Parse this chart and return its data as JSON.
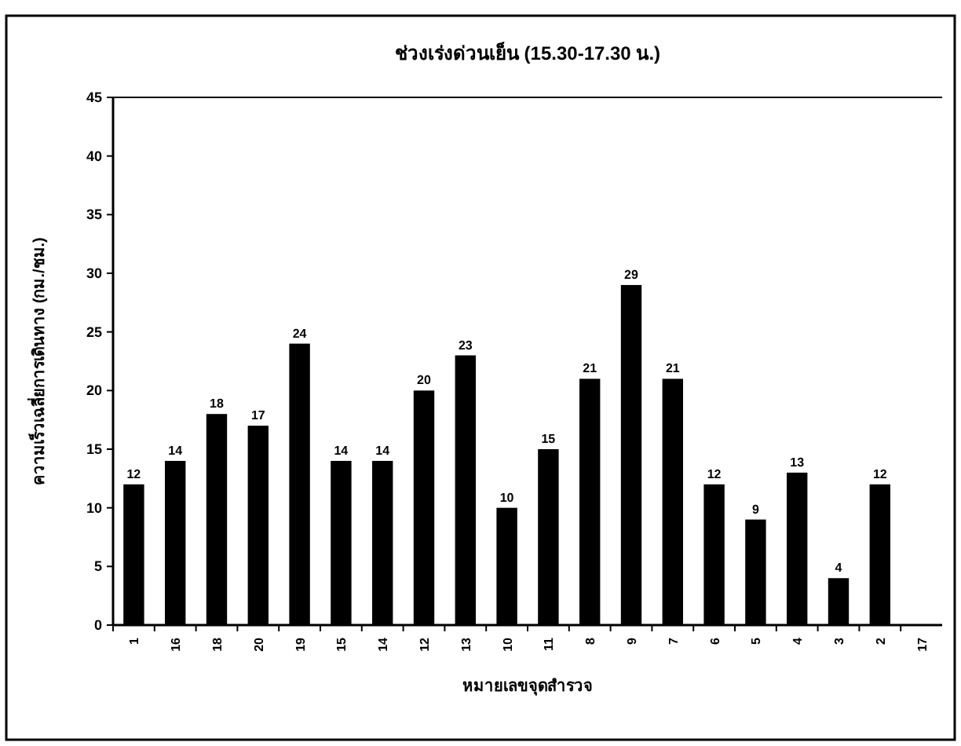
{
  "chart_data": {
    "type": "bar",
    "title": "ช่วงเร่งด่วนเย็น (15.30-17.30 น.)",
    "xlabel": "หมายเลขจุดสำรวจ",
    "ylabel": "ความเร็วเฉลี่ยการเดินทาง (กม./ชม.)",
    "categories": [
      "1",
      "16",
      "18",
      "20",
      "19",
      "15",
      "14",
      "12",
      "13",
      "10",
      "11",
      "8",
      "9",
      "7",
      "6",
      "5",
      "4",
      "3",
      "2",
      "17"
    ],
    "values": [
      12,
      14,
      18,
      17,
      24,
      14,
      14,
      20,
      23,
      10,
      15,
      21,
      29,
      21,
      12,
      9,
      13,
      4,
      12,
      null
    ],
    "color": "#000000",
    "data_labels": true,
    "ylim": [
      0,
      45
    ],
    "yticks": [
      0,
      5,
      10,
      15,
      20,
      25,
      30,
      35,
      40,
      45
    ],
    "grid": false
  }
}
